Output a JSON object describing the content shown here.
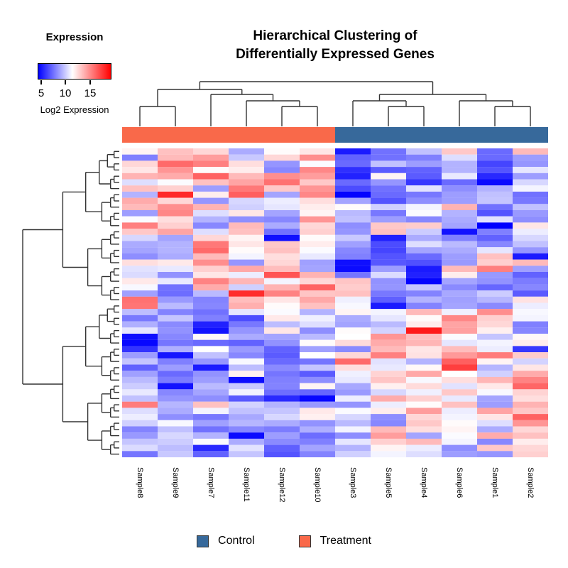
{
  "title": {
    "line1": "Hierarchical Clustering of",
    "line2": "Differentially Expressed Genes"
  },
  "color_key": {
    "title": "Expression",
    "axis_label": "Log2 Expression",
    "ticks": [
      "5",
      "10",
      "15"
    ],
    "tick_values": [
      5,
      10,
      15
    ],
    "gradient": [
      "#0000ff",
      "#ffffff",
      "#ff0000"
    ]
  },
  "group_legend": {
    "items": [
      {
        "label": "Control",
        "color": "#37699B"
      },
      {
        "label": "Treatment",
        "color": "#F9694A"
      }
    ]
  },
  "chart_data": {
    "type": "heatmap",
    "columns": [
      "Sample8",
      "Sample9",
      "Sample7",
      "Sample11",
      "Sample12",
      "Sample10",
      "Sample3",
      "Sample5",
      "Sample4",
      "Sample6",
      "Sample1",
      "Sample2"
    ],
    "column_groups": [
      "Treatment",
      "Treatment",
      "Treatment",
      "Treatment",
      "Treatment",
      "Treatment",
      "Control",
      "Control",
      "Control",
      "Control",
      "Control",
      "Control"
    ],
    "group_colors": {
      "Treatment": "#F9694A",
      "Control": "#37699B"
    },
    "row_count": 50,
    "row_labels_shown": false,
    "value_scale": {
      "min": 4.5,
      "mid": 11.5,
      "max": 18.5,
      "label": "Log2 Expression",
      "colormap": "blue-white-red"
    },
    "column_dendrogram": [
      [
        [
          0,
          1
        ],
        [
          2,
          [
            3,
            [
              4,
              5
            ]
          ]
        ]
      ],
      [
        [
          6,
          [
            7,
            8
          ]
        ],
        [
          9,
          [
            10,
            11
          ]
        ]
      ]
    ],
    "matrix": [
      [
        11.8,
        13.2,
        12.6,
        9.2,
        11.6,
        12.2,
        5.2,
        7.6,
        9.8,
        13.0,
        7.4,
        13.4
      ],
      [
        8.0,
        13.4,
        14.2,
        10.0,
        12.6,
        14.6,
        7.2,
        7.6,
        8.0,
        10.6,
        7.4,
        8.8
      ],
      [
        12.6,
        15.6,
        15.0,
        12.4,
        8.6,
        11.4,
        7.4,
        9.8,
        8.8,
        9.4,
        6.4,
        8.6
      ],
      [
        12.2,
        14.4,
        11.6,
        12.0,
        8.2,
        14.8,
        5.8,
        7.0,
        7.2,
        9.4,
        6.8,
        10.8
      ],
      [
        13.6,
        13.8,
        15.8,
        13.4,
        14.6,
        14.2,
        5.4,
        11.8,
        7.0,
        10.9,
        5.6,
        8.8
      ],
      [
        10.6,
        11.4,
        13.2,
        14.0,
        15.4,
        13.0,
        7.4,
        8.6,
        6.0,
        7.4,
        4.8,
        10.4
      ],
      [
        13.2,
        12.8,
        8.8,
        15.2,
        13.0,
        14.4,
        6.6,
        7.6,
        10.7,
        8.4,
        9.4,
        11.2
      ],
      [
        9.4,
        17.4,
        12.0,
        15.9,
        9.0,
        14.8,
        4.6,
        7.4,
        7.8,
        8.8,
        9.8,
        7.6
      ],
      [
        13.8,
        12.6,
        8.6,
        10.4,
        11.0,
        12.4,
        9.0,
        6.8,
        8.4,
        8.8,
        9.9,
        7.8
      ],
      [
        13.4,
        14.6,
        13.6,
        10.2,
        10.8,
        12.0,
        11.6,
        10.2,
        11.2,
        13.6,
        7.6,
        9.8
      ],
      [
        8.8,
        14.8,
        10.6,
        12.2,
        9.0,
        11.8,
        9.6,
        7.8,
        11.4,
        9.4,
        6.8,
        8.7
      ],
      [
        11.4,
        12.4,
        9.4,
        8.4,
        8.2,
        14.4,
        9.8,
        8.8,
        8.2,
        9.2,
        10.7,
        8.4
      ],
      [
        15.0,
        12.8,
        8.2,
        13.4,
        9.2,
        12.6,
        8.4,
        13.0,
        12.9,
        9.0,
        4.4,
        12.2
      ],
      [
        13.0,
        14.0,
        10.6,
        13.2,
        7.6,
        12.8,
        8.6,
        13.2,
        10.1,
        5.0,
        8.0,
        11.0
      ],
      [
        10.4,
        9.0,
        12.6,
        11.8,
        4.9,
        11.6,
        10.0,
        5.4,
        9.2,
        8.0,
        7.2,
        10.4
      ],
      [
        9.2,
        9.4,
        15.2,
        12.2,
        13.0,
        12.0,
        8.9,
        6.6,
        10.6,
        9.6,
        8.2,
        9.8
      ],
      [
        9.0,
        9.4,
        15.6,
        11.6,
        13.2,
        11.4,
        8.2,
        6.4,
        9.0,
        9.2,
        10.8,
        8.6
      ],
      [
        8.4,
        9.2,
        13.4,
        11.2,
        12.4,
        10.9,
        8.0,
        6.8,
        7.4,
        8.8,
        13.2,
        5.2
      ],
      [
        12.4,
        12.1,
        14.6,
        8.6,
        12.6,
        8.9,
        4.9,
        6.9,
        6.7,
        8.7,
        12.8,
        13.4
      ],
      [
        10.7,
        10.9,
        12.8,
        13.9,
        13.3,
        9.0,
        4.8,
        8.8,
        5.2,
        13.4,
        15.0,
        8.9
      ],
      [
        10.5,
        8.5,
        12.2,
        11.0,
        16.2,
        13.6,
        7.7,
        10.5,
        5.4,
        12.0,
        8.7,
        7.2
      ],
      [
        12.1,
        10.9,
        14.9,
        13.5,
        11.2,
        12.6,
        13.1,
        8.5,
        4.6,
        9.0,
        8.5,
        7.9
      ],
      [
        11.3,
        7.6,
        13.8,
        10.2,
        13.6,
        15.8,
        12.9,
        8.6,
        9.9,
        8.3,
        7.3,
        8.2
      ],
      [
        8.9,
        7.5,
        9.6,
        17.3,
        14.9,
        13.1,
        13.2,
        7.8,
        8.1,
        9.1,
        10.1,
        7.0
      ],
      [
        15.4,
        8.7,
        8.1,
        13.3,
        12.2,
        13.9,
        11.1,
        7.1,
        9.4,
        8.9,
        9.5,
        12.3
      ],
      [
        15.3,
        9.6,
        8.2,
        13.7,
        11.6,
        13.2,
        11.3,
        5.2,
        8.1,
        9.0,
        8.3,
        11.0
      ],
      [
        9.7,
        8.1,
        7.6,
        10.8,
        11.4,
        9.4,
        11.8,
        11.2,
        13.4,
        11.1,
        14.6,
        11.3
      ],
      [
        7.8,
        9.9,
        8.0,
        6.6,
        12.1,
        11.1,
        9.2,
        10.8,
        11.6,
        14.8,
        12.8,
        11.2
      ],
      [
        9.3,
        8.3,
        5.4,
        7.8,
        9.7,
        10.6,
        9.0,
        9.6,
        12.0,
        14.0,
        12.6,
        8.0
      ],
      [
        10.8,
        8.5,
        5.0,
        8.6,
        12.2,
        8.4,
        11.6,
        10.3,
        17.8,
        14.1,
        11.9,
        8.2
      ],
      [
        4.9,
        8.2,
        11.7,
        9.2,
        9.0,
        9.6,
        11.5,
        14.4,
        13.3,
        11.4,
        9.9,
        11.7
      ],
      [
        4.7,
        7.7,
        7.4,
        7.2,
        8.5,
        11.6,
        12.5,
        13.8,
        13.5,
        10.8,
        11.2,
        12.0
      ],
      [
        5.9,
        9.3,
        11.5,
        8.7,
        7.2,
        8.9,
        8.3,
        13.4,
        12.2,
        13.3,
        11.0,
        6.0
      ],
      [
        8.8,
        5.1,
        9.8,
        8.2,
        7.0,
        11.5,
        12.6,
        15.0,
        12.3,
        14.3,
        15.1,
        12.9
      ],
      [
        9.9,
        8.0,
        8.6,
        11.3,
        7.4,
        7.7,
        15.6,
        10.7,
        9.4,
        15.9,
        11.8,
        10.3
      ],
      [
        7.2,
        8.8,
        5.2,
        9.7,
        8.3,
        9.9,
        12.4,
        10.9,
        11.7,
        16.8,
        9.5,
        12.2
      ],
      [
        8.9,
        7.4,
        8.5,
        11.9,
        7.7,
        7.0,
        11.1,
        12.7,
        13.9,
        11.5,
        10.2,
        13.8
      ],
      [
        9.6,
        7.9,
        8.8,
        4.8,
        8.0,
        8.4,
        10.9,
        13.1,
        11.3,
        12.4,
        13.5,
        14.9
      ],
      [
        10.1,
        5.0,
        9.6,
        10.0,
        8.1,
        11.8,
        9.1,
        11.9,
        12.5,
        10.7,
        12.1,
        15.7
      ],
      [
        10.9,
        8.2,
        9.0,
        11.1,
        7.5,
        7.3,
        8.7,
        10.4,
        11.1,
        13.0,
        11.3,
        12.7
      ],
      [
        9.8,
        8.6,
        8.4,
        6.9,
        5.6,
        4.7,
        11.0,
        13.8,
        12.8,
        10.9,
        9.0,
        12.4
      ],
      [
        15.1,
        9.5,
        13.2,
        10.3,
        9.4,
        8.7,
        8.6,
        11.0,
        11.6,
        13.2,
        8.8,
        13.6
      ],
      [
        10.6,
        9.2,
        11.2,
        9.8,
        9.9,
        12.1,
        11.4,
        12.0,
        14.2,
        11.0,
        14.0,
        13.0
      ],
      [
        11.0,
        8.4,
        7.8,
        9.1,
        10.4,
        11.9,
        10.4,
        8.4,
        12.6,
        11.2,
        12.2,
        15.8
      ],
      [
        10.2,
        11.3,
        8.9,
        9.5,
        9.2,
        8.5,
        9.6,
        8.2,
        13.0,
        11.6,
        10.6,
        14.4
      ],
      [
        8.1,
        9.8,
        7.6,
        8.2,
        7.9,
        9.3,
        11.2,
        13.4,
        12.4,
        11.8,
        9.2,
        12.6
      ],
      [
        8.7,
        10.4,
        9.4,
        4.8,
        8.8,
        7.5,
        8.4,
        14.2,
        9.0,
        11.4,
        13.8,
        13.2
      ],
      [
        9.9,
        10.1,
        11.4,
        9.2,
        8.3,
        8.0,
        10.8,
        12.8,
        13.4,
        11.2,
        8.2,
        12.0
      ],
      [
        10.5,
        9.7,
        5.6,
        10.7,
        7.1,
        9.0,
        9.4,
        11.8,
        11.0,
        8.4,
        13.0,
        12.6
      ],
      [
        7.7,
        10.0,
        7.2,
        9.9,
        6.8,
        8.1,
        10.2,
        11.2,
        10.6,
        8.8,
        8.6,
        12.8
      ]
    ]
  }
}
